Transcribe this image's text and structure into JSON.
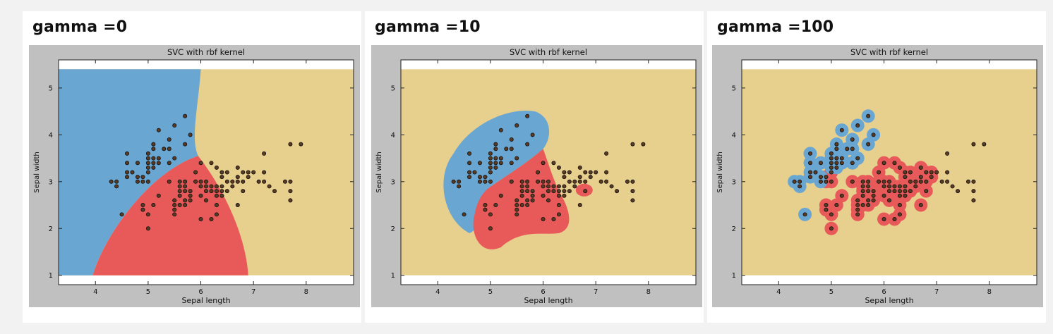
{
  "panels": [
    {
      "heading": "gamma =0"
    },
    {
      "heading": "gamma =10"
    },
    {
      "heading": "gamma =100"
    }
  ],
  "colors": {
    "background": "#f2f2f2",
    "figure_frame": "#c0c0c0",
    "class_setosa": "#6aa6d2",
    "class_versicolor": "#e85a5a",
    "class_virginica": "#e7cf8e",
    "point_fill": "#5a3a22",
    "point_edge": "#111111"
  },
  "chart_data": [
    {
      "type": "scatter",
      "title": "SVC with rbf kernel",
      "xlabel": "Sepal length",
      "ylabel": "Sepal width",
      "xlim": [
        3.3,
        8.9
      ],
      "ylim": [
        0.8,
        5.6
      ],
      "xticks": [
        "4",
        "5",
        "6",
        "7",
        "8"
      ],
      "yticks": [
        "1",
        "2",
        "3",
        "4",
        "5"
      ],
      "grid": false,
      "regions": [
        "setosa",
        "versicolor",
        "virginica"
      ],
      "points": [
        [
          4.3,
          3.0
        ],
        [
          4.4,
          2.9
        ],
        [
          4.4,
          3.0
        ],
        [
          4.5,
          2.3
        ],
        [
          4.6,
          3.1
        ],
        [
          4.6,
          3.2
        ],
        [
          4.6,
          3.4
        ],
        [
          4.6,
          3.6
        ],
        [
          4.7,
          3.2
        ],
        [
          4.8,
          3.0
        ],
        [
          4.8,
          3.1
        ],
        [
          4.8,
          3.4
        ],
        [
          4.9,
          2.5
        ],
        [
          4.9,
          2.4
        ],
        [
          4.9,
          3.0
        ],
        [
          4.9,
          3.1
        ],
        [
          5.0,
          2.0
        ],
        [
          5.0,
          2.3
        ],
        [
          5.0,
          3.0
        ],
        [
          5.0,
          3.2
        ],
        [
          5.0,
          3.3
        ],
        [
          5.0,
          3.4
        ],
        [
          5.0,
          3.5
        ],
        [
          5.0,
          3.6
        ],
        [
          5.1,
          2.5
        ],
        [
          5.1,
          3.3
        ],
        [
          5.1,
          3.4
        ],
        [
          5.1,
          3.5
        ],
        [
          5.1,
          3.7
        ],
        [
          5.1,
          3.8
        ],
        [
          5.2,
          2.7
        ],
        [
          5.2,
          3.4
        ],
        [
          5.2,
          3.5
        ],
        [
          5.2,
          4.1
        ],
        [
          5.3,
          3.7
        ],
        [
          5.4,
          3.0
        ],
        [
          5.4,
          3.4
        ],
        [
          5.4,
          3.7
        ],
        [
          5.4,
          3.9
        ],
        [
          5.5,
          2.3
        ],
        [
          5.5,
          2.4
        ],
        [
          5.5,
          2.5
        ],
        [
          5.5,
          2.6
        ],
        [
          5.5,
          3.5
        ],
        [
          5.5,
          4.2
        ],
        [
          5.6,
          2.5
        ],
        [
          5.6,
          2.7
        ],
        [
          5.6,
          2.8
        ],
        [
          5.6,
          2.9
        ],
        [
          5.6,
          3.0
        ],
        [
          5.7,
          2.5
        ],
        [
          5.7,
          2.6
        ],
        [
          5.7,
          2.8
        ],
        [
          5.7,
          2.9
        ],
        [
          5.7,
          3.0
        ],
        [
          5.7,
          3.8
        ],
        [
          5.7,
          4.4
        ],
        [
          5.8,
          2.6
        ],
        [
          5.8,
          2.7
        ],
        [
          5.8,
          2.8
        ],
        [
          5.8,
          4.0
        ],
        [
          5.9,
          3.0
        ],
        [
          5.9,
          3.2
        ],
        [
          6.0,
          2.2
        ],
        [
          6.0,
          2.7
        ],
        [
          6.0,
          2.9
        ],
        [
          6.0,
          3.0
        ],
        [
          6.0,
          3.4
        ],
        [
          6.1,
          2.6
        ],
        [
          6.1,
          2.8
        ],
        [
          6.1,
          2.9
        ],
        [
          6.1,
          3.0
        ],
        [
          6.2,
          2.2
        ],
        [
          6.2,
          2.8
        ],
        [
          6.2,
          2.9
        ],
        [
          6.2,
          3.4
        ],
        [
          6.3,
          2.3
        ],
        [
          6.3,
          2.5
        ],
        [
          6.3,
          2.7
        ],
        [
          6.3,
          2.8
        ],
        [
          6.3,
          2.9
        ],
        [
          6.3,
          3.3
        ],
        [
          6.4,
          2.7
        ],
        [
          6.4,
          2.8
        ],
        [
          6.4,
          2.9
        ],
        [
          6.4,
          3.1
        ],
        [
          6.4,
          3.2
        ],
        [
          6.5,
          2.8
        ],
        [
          6.5,
          3.0
        ],
        [
          6.5,
          3.2
        ],
        [
          6.6,
          2.9
        ],
        [
          6.6,
          3.0
        ],
        [
          6.7,
          2.5
        ],
        [
          6.7,
          3.0
        ],
        [
          6.7,
          3.1
        ],
        [
          6.7,
          3.3
        ],
        [
          6.8,
          2.8
        ],
        [
          6.8,
          3.0
        ],
        [
          6.8,
          3.2
        ],
        [
          6.9,
          3.1
        ],
        [
          6.9,
          3.2
        ],
        [
          7.0,
          3.2
        ],
        [
          7.1,
          3.0
        ],
        [
          7.2,
          3.0
        ],
        [
          7.2,
          3.2
        ],
        [
          7.2,
          3.6
        ],
        [
          7.3,
          2.9
        ],
        [
          7.4,
          2.8
        ],
        [
          7.6,
          3.0
        ],
        [
          7.7,
          2.6
        ],
        [
          7.7,
          2.8
        ],
        [
          7.7,
          3.0
        ],
        [
          7.7,
          3.8
        ],
        [
          7.9,
          3.8
        ]
      ]
    },
    {
      "type": "scatter",
      "title": "SVC with rbf kernel",
      "xlabel": "Sepal length",
      "ylabel": "Sepal width",
      "xlim": [
        3.3,
        8.9
      ],
      "ylim": [
        0.8,
        5.6
      ],
      "xticks": [
        "4",
        "5",
        "6",
        "7",
        "8"
      ],
      "yticks": [
        "1",
        "2",
        "3",
        "4",
        "5"
      ],
      "grid": false,
      "regions": [
        "setosa",
        "versicolor",
        "virginica"
      ],
      "points": [
        [
          4.3,
          3.0
        ],
        [
          4.4,
          2.9
        ],
        [
          4.4,
          3.0
        ],
        [
          4.5,
          2.3
        ],
        [
          4.6,
          3.1
        ],
        [
          4.6,
          3.2
        ],
        [
          4.6,
          3.4
        ],
        [
          4.6,
          3.6
        ],
        [
          4.7,
          3.2
        ],
        [
          4.8,
          3.0
        ],
        [
          4.8,
          3.1
        ],
        [
          4.8,
          3.4
        ],
        [
          4.9,
          2.5
        ],
        [
          4.9,
          2.4
        ],
        [
          4.9,
          3.0
        ],
        [
          4.9,
          3.1
        ],
        [
          5.0,
          2.0
        ],
        [
          5.0,
          2.3
        ],
        [
          5.0,
          3.0
        ],
        [
          5.0,
          3.2
        ],
        [
          5.0,
          3.3
        ],
        [
          5.0,
          3.4
        ],
        [
          5.0,
          3.5
        ],
        [
          5.0,
          3.6
        ],
        [
          5.1,
          2.5
        ],
        [
          5.1,
          3.3
        ],
        [
          5.1,
          3.4
        ],
        [
          5.1,
          3.5
        ],
        [
          5.1,
          3.7
        ],
        [
          5.1,
          3.8
        ],
        [
          5.2,
          2.7
        ],
        [
          5.2,
          3.4
        ],
        [
          5.2,
          3.5
        ],
        [
          5.2,
          4.1
        ],
        [
          5.3,
          3.7
        ],
        [
          5.4,
          3.0
        ],
        [
          5.4,
          3.4
        ],
        [
          5.4,
          3.7
        ],
        [
          5.4,
          3.9
        ],
        [
          5.5,
          2.3
        ],
        [
          5.5,
          2.4
        ],
        [
          5.5,
          2.5
        ],
        [
          5.5,
          2.6
        ],
        [
          5.5,
          3.5
        ],
        [
          5.5,
          4.2
        ],
        [
          5.6,
          2.5
        ],
        [
          5.6,
          2.7
        ],
        [
          5.6,
          2.8
        ],
        [
          5.6,
          2.9
        ],
        [
          5.6,
          3.0
        ],
        [
          5.7,
          2.5
        ],
        [
          5.7,
          2.6
        ],
        [
          5.7,
          2.8
        ],
        [
          5.7,
          2.9
        ],
        [
          5.7,
          3.0
        ],
        [
          5.7,
          3.8
        ],
        [
          5.7,
          4.4
        ],
        [
          5.8,
          2.6
        ],
        [
          5.8,
          2.7
        ],
        [
          5.8,
          2.8
        ],
        [
          5.8,
          4.0
        ],
        [
          5.9,
          3.0
        ],
        [
          5.9,
          3.2
        ],
        [
          6.0,
          2.2
        ],
        [
          6.0,
          2.7
        ],
        [
          6.0,
          2.9
        ],
        [
          6.0,
          3.0
        ],
        [
          6.0,
          3.4
        ],
        [
          6.1,
          2.6
        ],
        [
          6.1,
          2.8
        ],
        [
          6.1,
          2.9
        ],
        [
          6.1,
          3.0
        ],
        [
          6.2,
          2.2
        ],
        [
          6.2,
          2.8
        ],
        [
          6.2,
          2.9
        ],
        [
          6.2,
          3.4
        ],
        [
          6.3,
          2.3
        ],
        [
          6.3,
          2.5
        ],
        [
          6.3,
          2.7
        ],
        [
          6.3,
          2.8
        ],
        [
          6.3,
          2.9
        ],
        [
          6.3,
          3.3
        ],
        [
          6.4,
          2.7
        ],
        [
          6.4,
          2.8
        ],
        [
          6.4,
          2.9
        ],
        [
          6.4,
          3.1
        ],
        [
          6.4,
          3.2
        ],
        [
          6.5,
          2.8
        ],
        [
          6.5,
          3.0
        ],
        [
          6.5,
          3.2
        ],
        [
          6.6,
          2.9
        ],
        [
          6.6,
          3.0
        ],
        [
          6.7,
          2.5
        ],
        [
          6.7,
          3.0
        ],
        [
          6.7,
          3.1
        ],
        [
          6.7,
          3.3
        ],
        [
          6.8,
          2.8
        ],
        [
          6.8,
          3.0
        ],
        [
          6.8,
          3.2
        ],
        [
          6.9,
          3.1
        ],
        [
          6.9,
          3.2
        ],
        [
          7.0,
          3.2
        ],
        [
          7.1,
          3.0
        ],
        [
          7.2,
          3.0
        ],
        [
          7.2,
          3.2
        ],
        [
          7.2,
          3.6
        ],
        [
          7.3,
          2.9
        ],
        [
          7.4,
          2.8
        ],
        [
          7.6,
          3.0
        ],
        [
          7.7,
          2.6
        ],
        [
          7.7,
          2.8
        ],
        [
          7.7,
          3.0
        ],
        [
          7.7,
          3.8
        ],
        [
          7.9,
          3.8
        ]
      ]
    },
    {
      "type": "scatter",
      "title": "SVC with rbf kernel",
      "xlabel": "Sepal length",
      "ylabel": "Sepal width",
      "xlim": [
        3.3,
        8.9
      ],
      "ylim": [
        0.8,
        5.6
      ],
      "xticks": [
        "4",
        "5",
        "6",
        "7",
        "8"
      ],
      "yticks": [
        "1",
        "2",
        "3",
        "4",
        "5"
      ],
      "grid": false,
      "regions": [
        "setosa",
        "versicolor",
        "virginica"
      ],
      "points": [
        [
          4.3,
          3.0
        ],
        [
          4.4,
          2.9
        ],
        [
          4.4,
          3.0
        ],
        [
          4.5,
          2.3
        ],
        [
          4.6,
          3.1
        ],
        [
          4.6,
          3.2
        ],
        [
          4.6,
          3.4
        ],
        [
          4.6,
          3.6
        ],
        [
          4.7,
          3.2
        ],
        [
          4.8,
          3.0
        ],
        [
          4.8,
          3.1
        ],
        [
          4.8,
          3.4
        ],
        [
          4.9,
          2.5
        ],
        [
          4.9,
          2.4
        ],
        [
          4.9,
          3.0
        ],
        [
          4.9,
          3.1
        ],
        [
          5.0,
          2.0
        ],
        [
          5.0,
          2.3
        ],
        [
          5.0,
          3.0
        ],
        [
          5.0,
          3.2
        ],
        [
          5.0,
          3.3
        ],
        [
          5.0,
          3.4
        ],
        [
          5.0,
          3.5
        ],
        [
          5.0,
          3.6
        ],
        [
          5.1,
          2.5
        ],
        [
          5.1,
          3.3
        ],
        [
          5.1,
          3.4
        ],
        [
          5.1,
          3.5
        ],
        [
          5.1,
          3.7
        ],
        [
          5.1,
          3.8
        ],
        [
          5.2,
          2.7
        ],
        [
          5.2,
          3.4
        ],
        [
          5.2,
          3.5
        ],
        [
          5.2,
          4.1
        ],
        [
          5.3,
          3.7
        ],
        [
          5.4,
          3.0
        ],
        [
          5.4,
          3.4
        ],
        [
          5.4,
          3.7
        ],
        [
          5.4,
          3.9
        ],
        [
          5.5,
          2.3
        ],
        [
          5.5,
          2.4
        ],
        [
          5.5,
          2.5
        ],
        [
          5.5,
          2.6
        ],
        [
          5.5,
          3.5
        ],
        [
          5.5,
          4.2
        ],
        [
          5.6,
          2.5
        ],
        [
          5.6,
          2.7
        ],
        [
          5.6,
          2.8
        ],
        [
          5.6,
          2.9
        ],
        [
          5.6,
          3.0
        ],
        [
          5.7,
          2.5
        ],
        [
          5.7,
          2.6
        ],
        [
          5.7,
          2.8
        ],
        [
          5.7,
          2.9
        ],
        [
          5.7,
          3.0
        ],
        [
          5.7,
          3.8
        ],
        [
          5.7,
          4.4
        ],
        [
          5.8,
          2.6
        ],
        [
          5.8,
          2.7
        ],
        [
          5.8,
          2.8
        ],
        [
          5.8,
          4.0
        ],
        [
          5.9,
          3.0
        ],
        [
          5.9,
          3.2
        ],
        [
          6.0,
          2.2
        ],
        [
          6.0,
          2.7
        ],
        [
          6.0,
          2.9
        ],
        [
          6.0,
          3.0
        ],
        [
          6.0,
          3.4
        ],
        [
          6.1,
          2.6
        ],
        [
          6.1,
          2.8
        ],
        [
          6.1,
          2.9
        ],
        [
          6.1,
          3.0
        ],
        [
          6.2,
          2.2
        ],
        [
          6.2,
          2.8
        ],
        [
          6.2,
          2.9
        ],
        [
          6.2,
          3.4
        ],
        [
          6.3,
          2.3
        ],
        [
          6.3,
          2.5
        ],
        [
          6.3,
          2.7
        ],
        [
          6.3,
          2.8
        ],
        [
          6.3,
          2.9
        ],
        [
          6.3,
          3.3
        ],
        [
          6.4,
          2.7
        ],
        [
          6.4,
          2.8
        ],
        [
          6.4,
          2.9
        ],
        [
          6.4,
          3.1
        ],
        [
          6.4,
          3.2
        ],
        [
          6.5,
          2.8
        ],
        [
          6.5,
          3.0
        ],
        [
          6.5,
          3.2
        ],
        [
          6.6,
          2.9
        ],
        [
          6.6,
          3.0
        ],
        [
          6.7,
          2.5
        ],
        [
          6.7,
          3.0
        ],
        [
          6.7,
          3.1
        ],
        [
          6.7,
          3.3
        ],
        [
          6.8,
          2.8
        ],
        [
          6.8,
          3.0
        ],
        [
          6.8,
          3.2
        ],
        [
          6.9,
          3.1
        ],
        [
          6.9,
          3.2
        ],
        [
          7.0,
          3.2
        ],
        [
          7.1,
          3.0
        ],
        [
          7.2,
          3.0
        ],
        [
          7.2,
          3.2
        ],
        [
          7.2,
          3.6
        ],
        [
          7.3,
          2.9
        ],
        [
          7.4,
          2.8
        ],
        [
          7.6,
          3.0
        ],
        [
          7.7,
          2.6
        ],
        [
          7.7,
          2.8
        ],
        [
          7.7,
          3.0
        ],
        [
          7.7,
          3.8
        ],
        [
          7.9,
          3.8
        ]
      ]
    }
  ]
}
